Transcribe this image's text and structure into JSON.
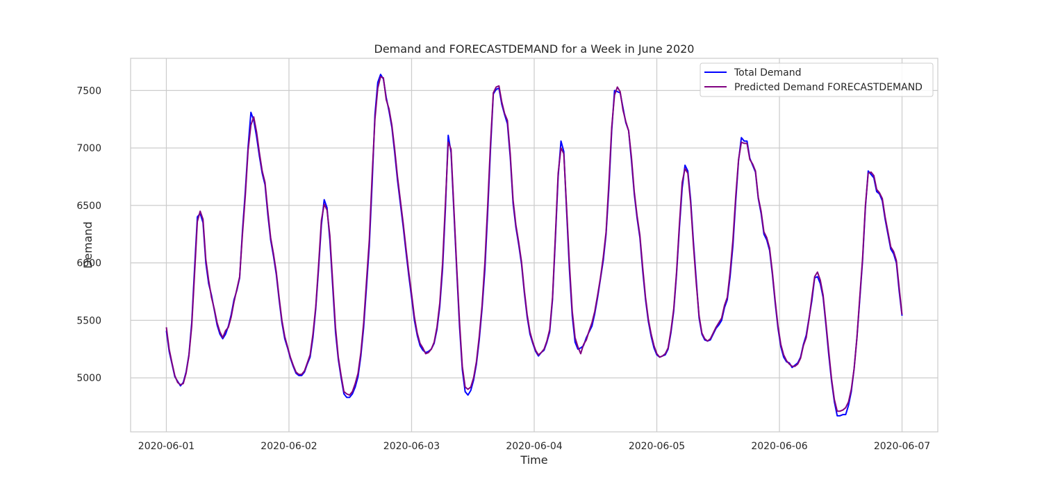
{
  "chart_data": {
    "type": "line",
    "title": "Demand and FORECASTDEMAND for a Week in June 2020",
    "xlabel": "Time",
    "ylabel": "Demand",
    "x_start": "2020-06-01T00:00",
    "x_end": "2020-06-07T00:00",
    "xlim": [
      "2020-05-31T17:00",
      "2020-06-07T07:00"
    ],
    "ylim": [
      4530,
      7780
    ],
    "x_ticks": [
      "2020-06-01",
      "2020-06-02",
      "2020-06-03",
      "2020-06-04",
      "2020-06-05",
      "2020-06-06",
      "2020-06-07"
    ],
    "y_ticks": [
      5000,
      5500,
      6000,
      6500,
      7000,
      7500
    ],
    "grid": true,
    "legend_position": "top-right",
    "series": [
      {
        "name": "Total Demand",
        "color": "#0000ff",
        "values": [
          5410,
          5230,
          5120,
          5010,
          4970,
          4930,
          4960,
          5050,
          5200,
          5480,
          5950,
          6400,
          6430,
          6350,
          6000,
          5820,
          5720,
          5590,
          5460,
          5380,
          5340,
          5380,
          5450,
          5550,
          5680,
          5760,
          5870,
          6280,
          6620,
          7010,
          7310,
          7240,
          7100,
          6930,
          6780,
          6680,
          6420,
          6200,
          6060,
          5900,
          5680,
          5480,
          5340,
          5260,
          5170,
          5100,
          5040,
          5020,
          5020,
          5050,
          5120,
          5180,
          5350,
          5600,
          5950,
          6330,
          6550,
          6480,
          6200,
          5800,
          5400,
          5160,
          5000,
          4860,
          4830,
          4830,
          4860,
          4920,
          5010,
          5190,
          5440,
          5790,
          6150,
          6690,
          7290,
          7570,
          7640,
          7600,
          7440,
          7320,
          7180,
          6960,
          6720,
          6520,
          6320,
          6100,
          5890,
          5700,
          5500,
          5370,
          5280,
          5240,
          5220,
          5230,
          5250,
          5300,
          5420,
          5620,
          5950,
          6470,
          7110,
          6960,
          6450,
          5940,
          5450,
          5070,
          4880,
          4850,
          4890,
          4980,
          5120,
          5330,
          5600,
          5940,
          6440,
          6990,
          7470,
          7510,
          7520,
          7380,
          7290,
          7210,
          6920,
          6520,
          6310,
          6160,
          5990,
          5740,
          5530,
          5380,
          5300,
          5230,
          5190,
          5220,
          5240,
          5310,
          5400,
          5680,
          6200,
          6750,
          7060,
          6970,
          6450,
          5940,
          5540,
          5310,
          5250,
          5260,
          5280,
          5350,
          5400,
          5450,
          5560,
          5700,
          5860,
          6020,
          6250,
          6650,
          7150,
          7500,
          7490,
          7480,
          7350,
          7220,
          7150,
          6890,
          6600,
          6390,
          6220,
          5930,
          5680,
          5490,
          5360,
          5260,
          5200,
          5180,
          5190,
          5200,
          5250,
          5390,
          5580,
          5900,
          6300,
          6650,
          6850,
          6800,
          6550,
          6180,
          5850,
          5520,
          5380,
          5330,
          5320,
          5330,
          5380,
          5430,
          5460,
          5500,
          5610,
          5680,
          5880,
          6150,
          6540,
          6890,
          7090,
          7060,
          7060,
          6910,
          6850,
          6790,
          6560,
          6430,
          6250,
          6200,
          6110,
          5900,
          5650,
          5430,
          5270,
          5180,
          5140,
          5130,
          5090,
          5110,
          5130,
          5180,
          5290,
          5370,
          5520,
          5670,
          5870,
          5880,
          5820,
          5700,
          5460,
          5200,
          4970,
          4790,
          4670,
          4670,
          4680,
          4680,
          4760,
          4880,
          5080,
          5350,
          5680,
          6020,
          6480,
          6800,
          6770,
          6740,
          6620,
          6600,
          6540,
          6380,
          6250,
          6120,
          6080,
          6000,
          5750,
          5540
        ]
      },
      {
        "name": "Predicted Demand FORECASTDEMAND",
        "color": "#800080",
        "values": [
          5440,
          5250,
          5130,
          5020,
          4960,
          4940,
          4950,
          5040,
          5190,
          5450,
          5900,
          6360,
          6450,
          6380,
          6030,
          5850,
          5700,
          5600,
          5480,
          5400,
          5350,
          5410,
          5440,
          5530,
          5660,
          5770,
          5880,
          6250,
          6580,
          6980,
          7200,
          7270,
          7140,
          6960,
          6800,
          6700,
          6450,
          6220,
          6080,
          5920,
          5700,
          5500,
          5360,
          5270,
          5180,
          5110,
          5050,
          5030,
          5030,
          5060,
          5130,
          5200,
          5380,
          5620,
          5980,
          6370,
          6510,
          6460,
          6240,
          5840,
          5440,
          5180,
          5020,
          4880,
          4860,
          4850,
          4880,
          4950,
          5040,
          5220,
          5480,
          5840,
          6200,
          6760,
          7250,
          7520,
          7620,
          7610,
          7420,
          7340,
          7200,
          6990,
          6750,
          6550,
          6350,
          6130,
          5920,
          5730,
          5530,
          5390,
          5300,
          5260,
          5210,
          5220,
          5250,
          5310,
          5440,
          5650,
          6000,
          6520,
          7050,
          6990,
          6480,
          5970,
          5490,
          5100,
          4920,
          4900,
          4920,
          5000,
          5140,
          5360,
          5630,
          6000,
          6500,
          7040,
          7480,
          7530,
          7540,
          7400,
          7300,
          7240,
          6950,
          6550,
          6330,
          6180,
          6010,
          5760,
          5550,
          5400,
          5310,
          5240,
          5200,
          5220,
          5250,
          5320,
          5420,
          5700,
          6230,
          6780,
          7000,
          6950,
          6480,
          5990,
          5580,
          5350,
          5270,
          5210,
          5290,
          5330,
          5410,
          5480,
          5580,
          5720,
          5870,
          6050,
          6270,
          6700,
          7180,
          7460,
          7530,
          7490,
          7330,
          7230,
          7150,
          6920,
          6620,
          6410,
          6240,
          5960,
          5700,
          5510,
          5380,
          5280,
          5210,
          5180,
          5190,
          5210,
          5260,
          5410,
          5600,
          5920,
          6330,
          6700,
          6820,
          6780,
          6520,
          6150,
          5820,
          5540,
          5390,
          5340,
          5320,
          5340,
          5390,
          5440,
          5480,
          5520,
          5630,
          5700,
          5920,
          6200,
          6580,
          6900,
          7050,
          7040,
          7040,
          6900,
          6860,
          6800,
          6570,
          6450,
          6270,
          6220,
          6130,
          5920,
          5670,
          5450,
          5290,
          5200,
          5150,
          5120,
          5100,
          5100,
          5120,
          5170,
          5280,
          5350,
          5510,
          5700,
          5880,
          5920,
          5850,
          5720,
          5480,
          5230,
          4990,
          4810,
          4710,
          4710,
          4720,
          4740,
          4790,
          4900,
          5080,
          5350,
          5700,
          6040,
          6500,
          6780,
          6790,
          6760,
          6640,
          6610,
          6560,
          6400,
          6270,
          6140,
          6100,
          6020,
          5780,
          5550
        ]
      }
    ]
  }
}
